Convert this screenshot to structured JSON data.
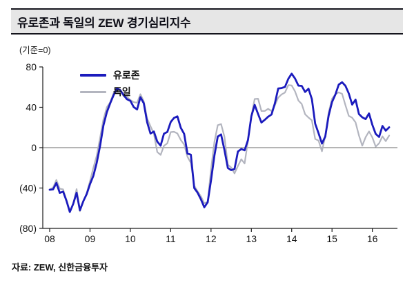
{
  "header": {
    "title": "유로존과 독일의 ZEW 경기심리지수"
  },
  "chart": {
    "unit_label": "(기준=0)",
    "legend": [
      {
        "label": "유로존",
        "color": "#1b1bbd",
        "sample_height": 4
      },
      {
        "label": "독일",
        "color": "#b3b5bf",
        "sample_height": 3
      }
    ]
  },
  "chart_data": {
    "type": "line",
    "title": "유로존과 독일의 ZEW 경기심리지수",
    "xlabel": "",
    "ylabel": "(기준=0)",
    "ylim": [
      -80,
      80
    ],
    "grid": false,
    "zero_baseline": true,
    "legend_position": "top-left-inside",
    "x_start": "2008-01",
    "x_interval": "monthly",
    "x_tick_labels": [
      "08",
      "09",
      "10",
      "11",
      "12",
      "13",
      "14",
      "15",
      "16"
    ],
    "y_ticks": [
      80,
      40,
      0,
      -40,
      -80
    ],
    "y_tick_labels": [
      "80",
      "40",
      "0",
      "(40)",
      "(80)"
    ],
    "series": [
      {
        "name": "유로존",
        "color": "#1b1bbd",
        "width": 2.8,
        "values": [
          -41.7,
          -41.4,
          -35.0,
          -44.8,
          -43.6,
          -52.7,
          -63.7,
          -55.7,
          -44.7,
          -62.0,
          -53.1,
          -46.1,
          -36.0,
          -28.0,
          -15.0,
          2.0,
          22.0,
          35.0,
          44.0,
          52.0,
          58.5,
          57.0,
          52.0,
          48.0,
          46.4,
          40.2,
          37.9,
          50.0,
          44.0,
          25.0,
          14.0,
          16.0,
          6.0,
          2.0,
          13.8,
          15.5,
          25.4,
          29.5,
          31.0,
          19.7,
          13.6,
          -5.9,
          -7.0,
          -40.0,
          -44.6,
          -51.2,
          -59.1,
          -54.1,
          -32.5,
          -8.1,
          11.0,
          13.1,
          -2.4,
          -20.1,
          -22.3,
          -21.2,
          -3.8,
          -1.4,
          -2.6,
          7.6,
          31.2,
          42.4,
          33.4,
          24.9,
          27.6,
          30.6,
          32.8,
          44.0,
          58.6,
          59.1,
          60.2,
          68.3,
          73.3,
          68.5,
          61.5,
          61.2,
          55.2,
          58.4,
          48.1,
          23.7,
          14.2,
          4.1,
          11.0,
          31.8,
          45.2,
          52.7,
          62.4,
          64.8,
          61.2,
          53.7,
          42.7,
          47.6,
          33.3,
          30.1,
          28.3,
          33.9,
          22.7,
          13.6,
          10.6,
          21.5,
          16.8,
          20.2
        ]
      },
      {
        "name": "독일",
        "color": "#b3b5bf",
        "width": 2.2,
        "values": [
          -41.6,
          -39.5,
          -32.0,
          -40.7,
          -41.4,
          -52.4,
          -63.9,
          -55.5,
          -41.1,
          -63.0,
          -53.5,
          -45.2,
          -33.0,
          -20.0,
          -8.0,
          10.0,
          28.0,
          40.0,
          45.0,
          54.0,
          57.7,
          56.0,
          51.0,
          50.4,
          47.2,
          45.1,
          44.5,
          53.0,
          45.8,
          28.7,
          21.2,
          14.0,
          -4.3,
          -7.2,
          1.8,
          4.3,
          15.4,
          15.7,
          14.1,
          7.6,
          3.1,
          -9.0,
          -15.1,
          -37.6,
          -43.3,
          -48.3,
          -55.2,
          -53.8,
          -21.6,
          5.4,
          22.3,
          23.4,
          10.8,
          -16.9,
          -19.6,
          -25.5,
          -18.2,
          -11.5,
          -15.7,
          6.9,
          31.5,
          48.2,
          48.5,
          36.3,
          36.4,
          38.5,
          36.3,
          42.0,
          49.6,
          52.8,
          54.6,
          62.0,
          61.7,
          55.7,
          46.6,
          43.2,
          33.1,
          29.8,
          27.1,
          8.6,
          6.9,
          -3.6,
          11.5,
          34.9,
          48.4,
          53.0,
          54.8,
          53.3,
          41.9,
          31.5,
          29.7,
          25.0,
          12.1,
          1.9,
          10.4,
          16.1,
          10.2,
          1.0,
          4.3,
          11.2,
          6.4,
          12.0
        ]
      }
    ]
  },
  "footer": {
    "source": "자료: ZEW, 신한금융투자"
  }
}
